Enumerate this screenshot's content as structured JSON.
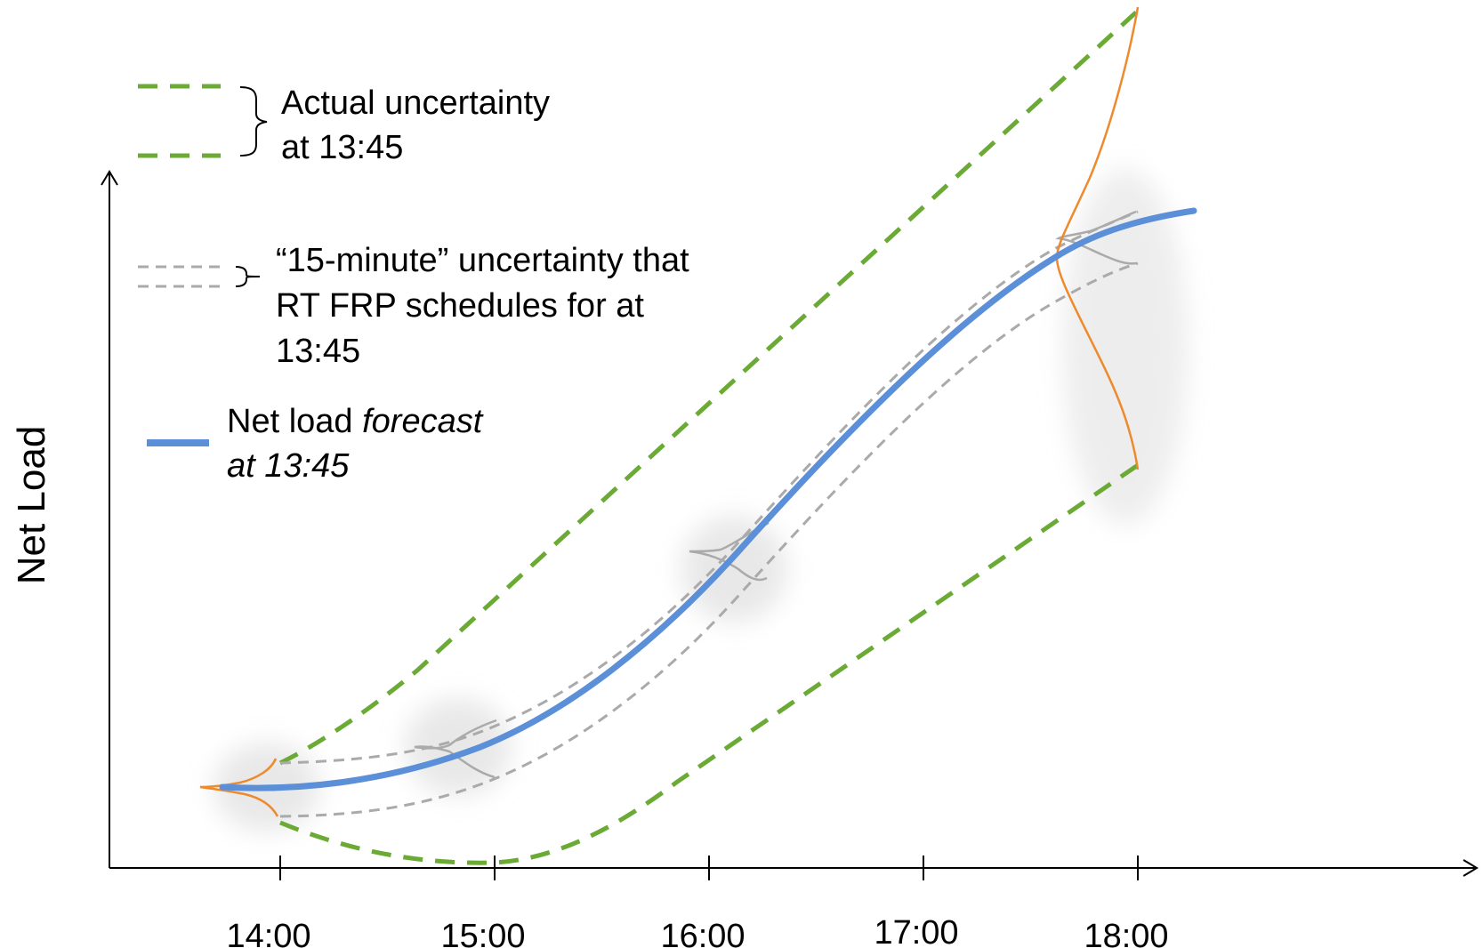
{
  "ylabel": "Net Load",
  "x_ticks": [
    "14:00",
    "15:00",
    "16:00",
    "17:00",
    "18:00"
  ],
  "legend": {
    "actual": {
      "line1": "Actual uncertainty",
      "line2": "at 13:45"
    },
    "fifteen": {
      "line1": "“15-minute” uncertainty that",
      "line2": "RT FRP schedules for at",
      "line3": "13:45"
    },
    "forecast": {
      "line1_plain": "Net load ",
      "line1_italic": "forecast",
      "line2_italic": "at 13:45"
    }
  },
  "colors": {
    "forecast": "#5b8fd8",
    "actual_band": "#6aaa35",
    "fifteen_band": "#aaaaaa",
    "distribution": "#ee8a2e",
    "axis": "#000000"
  }
}
